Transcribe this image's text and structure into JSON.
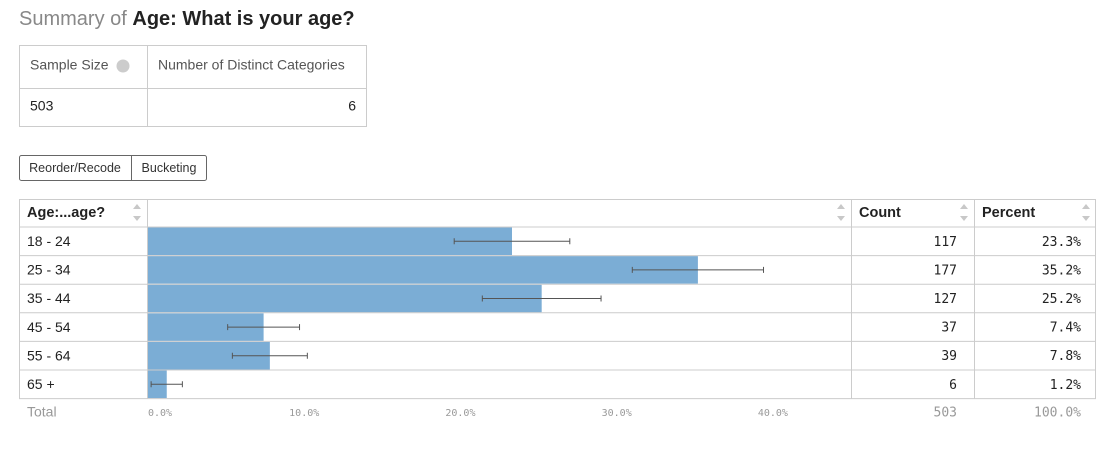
{
  "header": {
    "prefix": "Summary of",
    "title": "Age: What is your age?"
  },
  "summary_table": {
    "columns": [
      "Sample Size",
      "Number of Distinct Categories"
    ],
    "values": [
      503,
      6
    ]
  },
  "buttons": [
    "Reorder/Recode",
    "Bucketing"
  ],
  "table": {
    "columns": [
      "Age:...age?",
      "Count",
      "Percent"
    ],
    "categories": [
      "18 - 24",
      "25 - 34",
      "35 - 44",
      "45 - 54",
      "55 - 64",
      "65 +"
    ],
    "counts": [
      117,
      177,
      127,
      37,
      39,
      6
    ],
    "values": [
      23.3,
      35.2,
      25.2,
      7.4,
      7.8,
      1.2
    ],
    "value_labels": [
      "23.3%",
      "35.2%",
      "25.2%",
      "7.4%",
      "7.8%",
      "1.2%"
    ],
    "errors": [
      3.7,
      4.2,
      3.8,
      2.3,
      2.4,
      1.0
    ],
    "color": "#7badd5",
    "xlim": [
      0,
      45
    ],
    "xticks": [
      {
        "value": 0,
        "label": "0.0%"
      },
      {
        "value": 10,
        "label": "10.0%"
      },
      {
        "value": 20,
        "label": "20.0%"
      },
      {
        "value": 30,
        "label": "30.0%"
      },
      {
        "value": 40,
        "label": "40.0%"
      }
    ],
    "total": {
      "label": "Total",
      "count": 503,
      "percent": "100.0%"
    }
  }
}
